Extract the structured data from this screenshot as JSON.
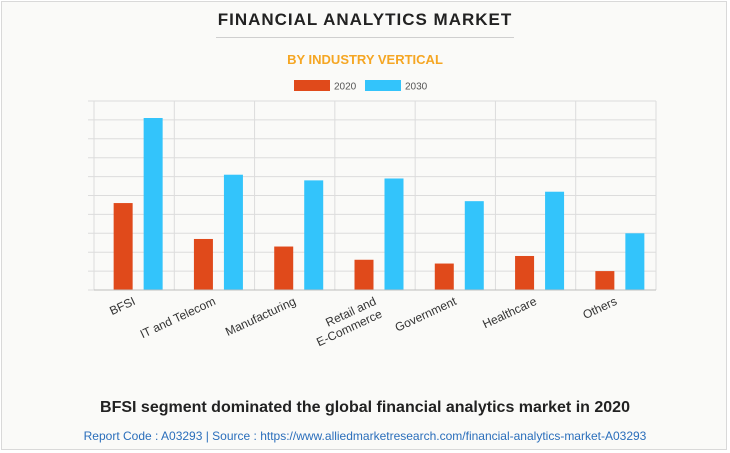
{
  "header": {
    "title": "FINANCIAL ANALYTICS MARKET",
    "subtitle": "BY INDUSTRY VERTICAL"
  },
  "footer": {
    "caption": "BFSI segment dominated the global financial analytics market in 2020",
    "source_label": "Report Code : A03293  |  Source : https://www.alliedmarketresearch.com/financial-analytics-market-A03293"
  },
  "colors": {
    "series_2020": "#e04a1b",
    "series_2030": "#33c4fb",
    "subtitle": "#f5a623",
    "source": "#2a6ebb",
    "grid": "#dcdcdc"
  },
  "chart_data": {
    "type": "bar",
    "title": "FINANCIAL ANALYTICS MARKET",
    "subtitle": "BY INDUSTRY VERTICAL",
    "xlabel": "",
    "ylabel": "",
    "ylim": [
      0,
      10
    ],
    "grid": true,
    "legend_position": "top-center",
    "categories": [
      [
        "BFSI"
      ],
      [
        "IT and Telecom"
      ],
      [
        "Manufacturing"
      ],
      [
        "Retail and",
        "E-Commerce"
      ],
      [
        "Government"
      ],
      [
        "Healthcare"
      ],
      [
        "Others"
      ]
    ],
    "series": [
      {
        "name": "2020",
        "values": [
          4.6,
          2.7,
          2.3,
          1.6,
          1.4,
          1.8,
          1.0
        ]
      },
      {
        "name": "2030",
        "values": [
          9.1,
          6.1,
          5.8,
          5.9,
          4.7,
          5.2,
          3.0
        ]
      }
    ]
  }
}
